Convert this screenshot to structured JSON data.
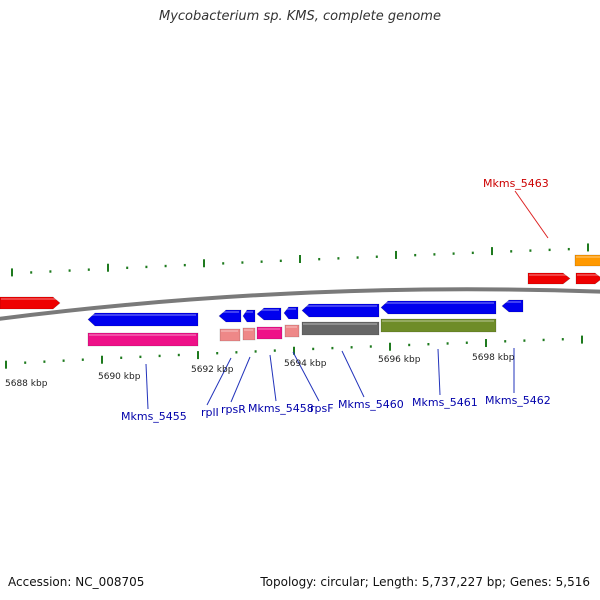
{
  "title": "Mycobacterium sp. KMS, complete genome",
  "footer": {
    "accession": "Accession: NC_008705",
    "summary": "Topology: circular; Length: 5,737,227 bp; Genes: 5,516"
  },
  "colors": {
    "backbone": "#7a7a7a",
    "tick": "#1e7a1e",
    "scale_text": "#222222",
    "label_top": "#cc0000",
    "label_bottom": "#0000aa",
    "leader_top": "#dd2222",
    "leader_bottom": "#2233bb"
  },
  "scale_ticks": [
    "5688 kbp",
    "5690 kbp",
    "5692 kbp",
    "5694 kbp",
    "5696 kbp",
    "5698 kbp"
  ],
  "gene_labels": [
    {
      "id": "mkms-5463",
      "text": "Mkms_5463",
      "strand": "top"
    },
    {
      "id": "mkms-5455",
      "text": "Mkms_5455",
      "strand": "bottom"
    },
    {
      "id": "rpli",
      "text": "rplI",
      "strand": "bottom"
    },
    {
      "id": "rpsr",
      "text": "rpsR",
      "strand": "bottom"
    },
    {
      "id": "mkms-5458",
      "text": "Mkms_5458",
      "strand": "bottom"
    },
    {
      "id": "rpsf",
      "text": "rpsF",
      "strand": "bottom"
    },
    {
      "id": "mkms-5460",
      "text": "Mkms_5460",
      "strand": "bottom"
    },
    {
      "id": "mkms-5461",
      "text": "Mkms_5461",
      "strand": "bottom"
    },
    {
      "id": "mkms-5462",
      "text": "Mkms_5462",
      "strand": "bottom"
    }
  ],
  "features": [
    {
      "name": "feature-red-left",
      "color": "#ee0000",
      "track": "forward",
      "direction": "forward"
    },
    {
      "name": "feature-red-right-1",
      "color": "#ee0000",
      "track": "forward",
      "direction": "forward"
    },
    {
      "name": "feature-red-right-2",
      "color": "#ee0000",
      "track": "forward",
      "direction": "forward"
    },
    {
      "name": "feature-orange",
      "color": "#ff9900",
      "track": "forward-outer",
      "direction": "forward"
    },
    {
      "name": "gene-mkms-5455",
      "color": "#0000ee",
      "track": "reverse",
      "direction": "reverse"
    },
    {
      "name": "gene-rpli",
      "color": "#0000ee",
      "track": "reverse",
      "direction": "reverse"
    },
    {
      "name": "gene-rpsr",
      "color": "#0000ee",
      "track": "reverse",
      "direction": "reverse"
    },
    {
      "name": "gene-mkms-5458",
      "color": "#0000ee",
      "track": "reverse",
      "direction": "reverse"
    },
    {
      "name": "gene-rpsf",
      "color": "#0000ee",
      "track": "reverse",
      "direction": "reverse"
    },
    {
      "name": "gene-mkms-5460",
      "color": "#0000ee",
      "track": "reverse",
      "direction": "reverse"
    },
    {
      "name": "gene-mkms-5461",
      "color": "#0000ee",
      "track": "reverse",
      "direction": "reverse"
    },
    {
      "name": "gene-mkms-5462",
      "color": "#0000ee",
      "track": "reverse",
      "direction": "reverse"
    },
    {
      "name": "cds-mkms-5455",
      "color": "#ee1188",
      "track": "reverse-inner",
      "direction": "none"
    },
    {
      "name": "cds-rpli",
      "color": "#ee8888",
      "track": "reverse-inner",
      "direction": "none"
    },
    {
      "name": "cds-rpsr",
      "color": "#ee8888",
      "track": "reverse-inner",
      "direction": "none"
    },
    {
      "name": "cds-mkms-5458",
      "color": "#ee1188",
      "track": "reverse-inner",
      "direction": "none"
    },
    {
      "name": "cds-rpsf",
      "color": "#ee8888",
      "track": "reverse-inner",
      "direction": "none"
    },
    {
      "name": "cds-mkms-5460",
      "color": "#666666",
      "track": "reverse-inner",
      "direction": "none"
    },
    {
      "name": "cds-mkms-5461",
      "color": "#6e8c28",
      "track": "reverse-inner",
      "direction": "none"
    }
  ]
}
